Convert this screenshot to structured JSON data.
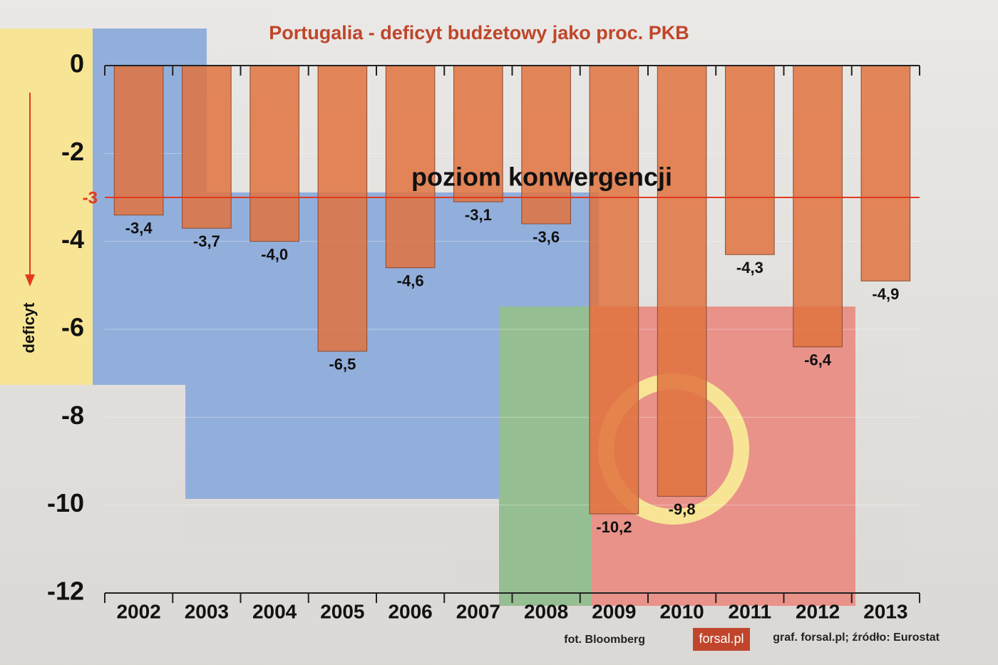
{
  "chart_data": {
    "type": "bar",
    "title": "Portugalia - deficyt budżetowy jako proc. PKB",
    "y_label": "deficyt",
    "categories": [
      "2002",
      "2003",
      "2004",
      "2005",
      "2006",
      "2007",
      "2008",
      "2009",
      "2010",
      "2011",
      "2012",
      "2013"
    ],
    "values": [
      -3.4,
      -3.7,
      -4.0,
      -6.5,
      -4.6,
      -3.1,
      -3.6,
      -10.2,
      -9.8,
      -4.3,
      -6.4,
      -4.9
    ],
    "value_labels": [
      "-3,4",
      "-3,7",
      "-4,0",
      "-6,5",
      "-4,6",
      "-3,1",
      "-3,6",
      "-10,2",
      "-9,8",
      "-4,3",
      "-6,4",
      "-4,9"
    ],
    "color": "#e0733f",
    "ylim": [
      0,
      -12
    ],
    "yticks": [
      0,
      -2,
      -4,
      -6,
      -8,
      -10,
      -12
    ],
    "grid": true,
    "reference_line": {
      "value": -3,
      "label": "poziom konwergencji",
      "color": "#e03a1e"
    },
    "photo_credit": "fot. Bloomberg",
    "logo": "forsal.pl",
    "source": "graf. forsal.pl;  źródło: Eurostat"
  }
}
